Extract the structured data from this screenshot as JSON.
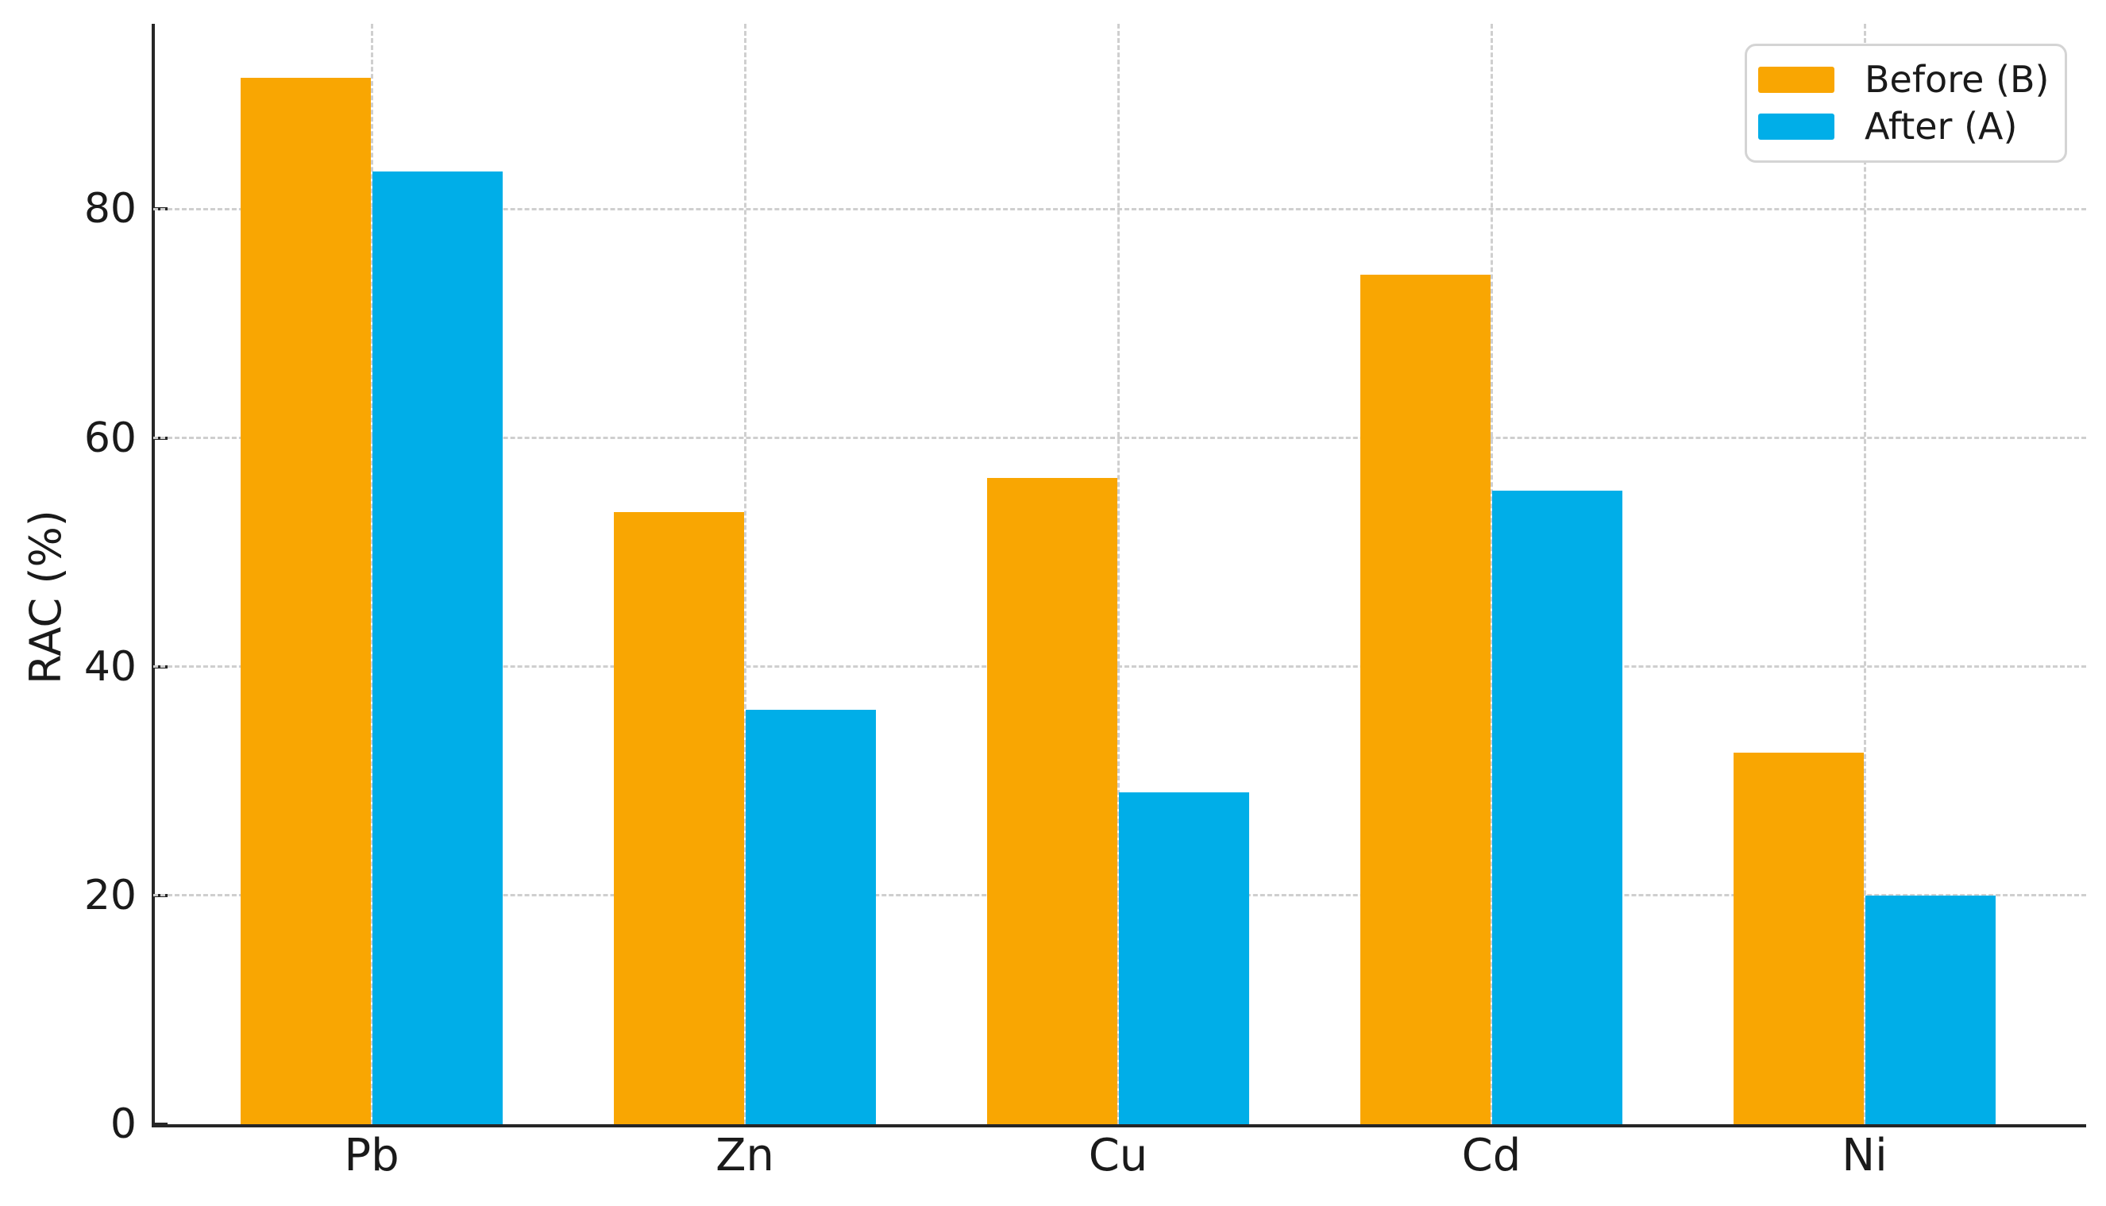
{
  "chart_data": {
    "type": "bar",
    "title": "",
    "categories": [
      "Pb",
      "Zn",
      "Cu",
      "Cd",
      "Ni"
    ],
    "series": [
      {
        "name": "Before (B)",
        "color": "#F9A602",
        "values": [
          91.5,
          53.5,
          56.5,
          74.3,
          32.5
        ]
      },
      {
        "name": "After (A)",
        "color": "#00AEE8",
        "values": [
          83.3,
          36.2,
          29.0,
          55.4,
          20.0
        ]
      }
    ],
    "xlabel": "",
    "ylabel": "RAC (%)",
    "yticks": [
      0,
      20,
      40,
      60,
      80
    ],
    "ylim": [
      0,
      96.2
    ],
    "grid": true,
    "grid_style": "dashed",
    "legend_position": "upper right"
  },
  "colors": {
    "background": "#ffffff",
    "axis": "#262626",
    "grid": "#cfcfcf",
    "text": "#1a1a1a",
    "legend_border": "#d4d4d4"
  }
}
